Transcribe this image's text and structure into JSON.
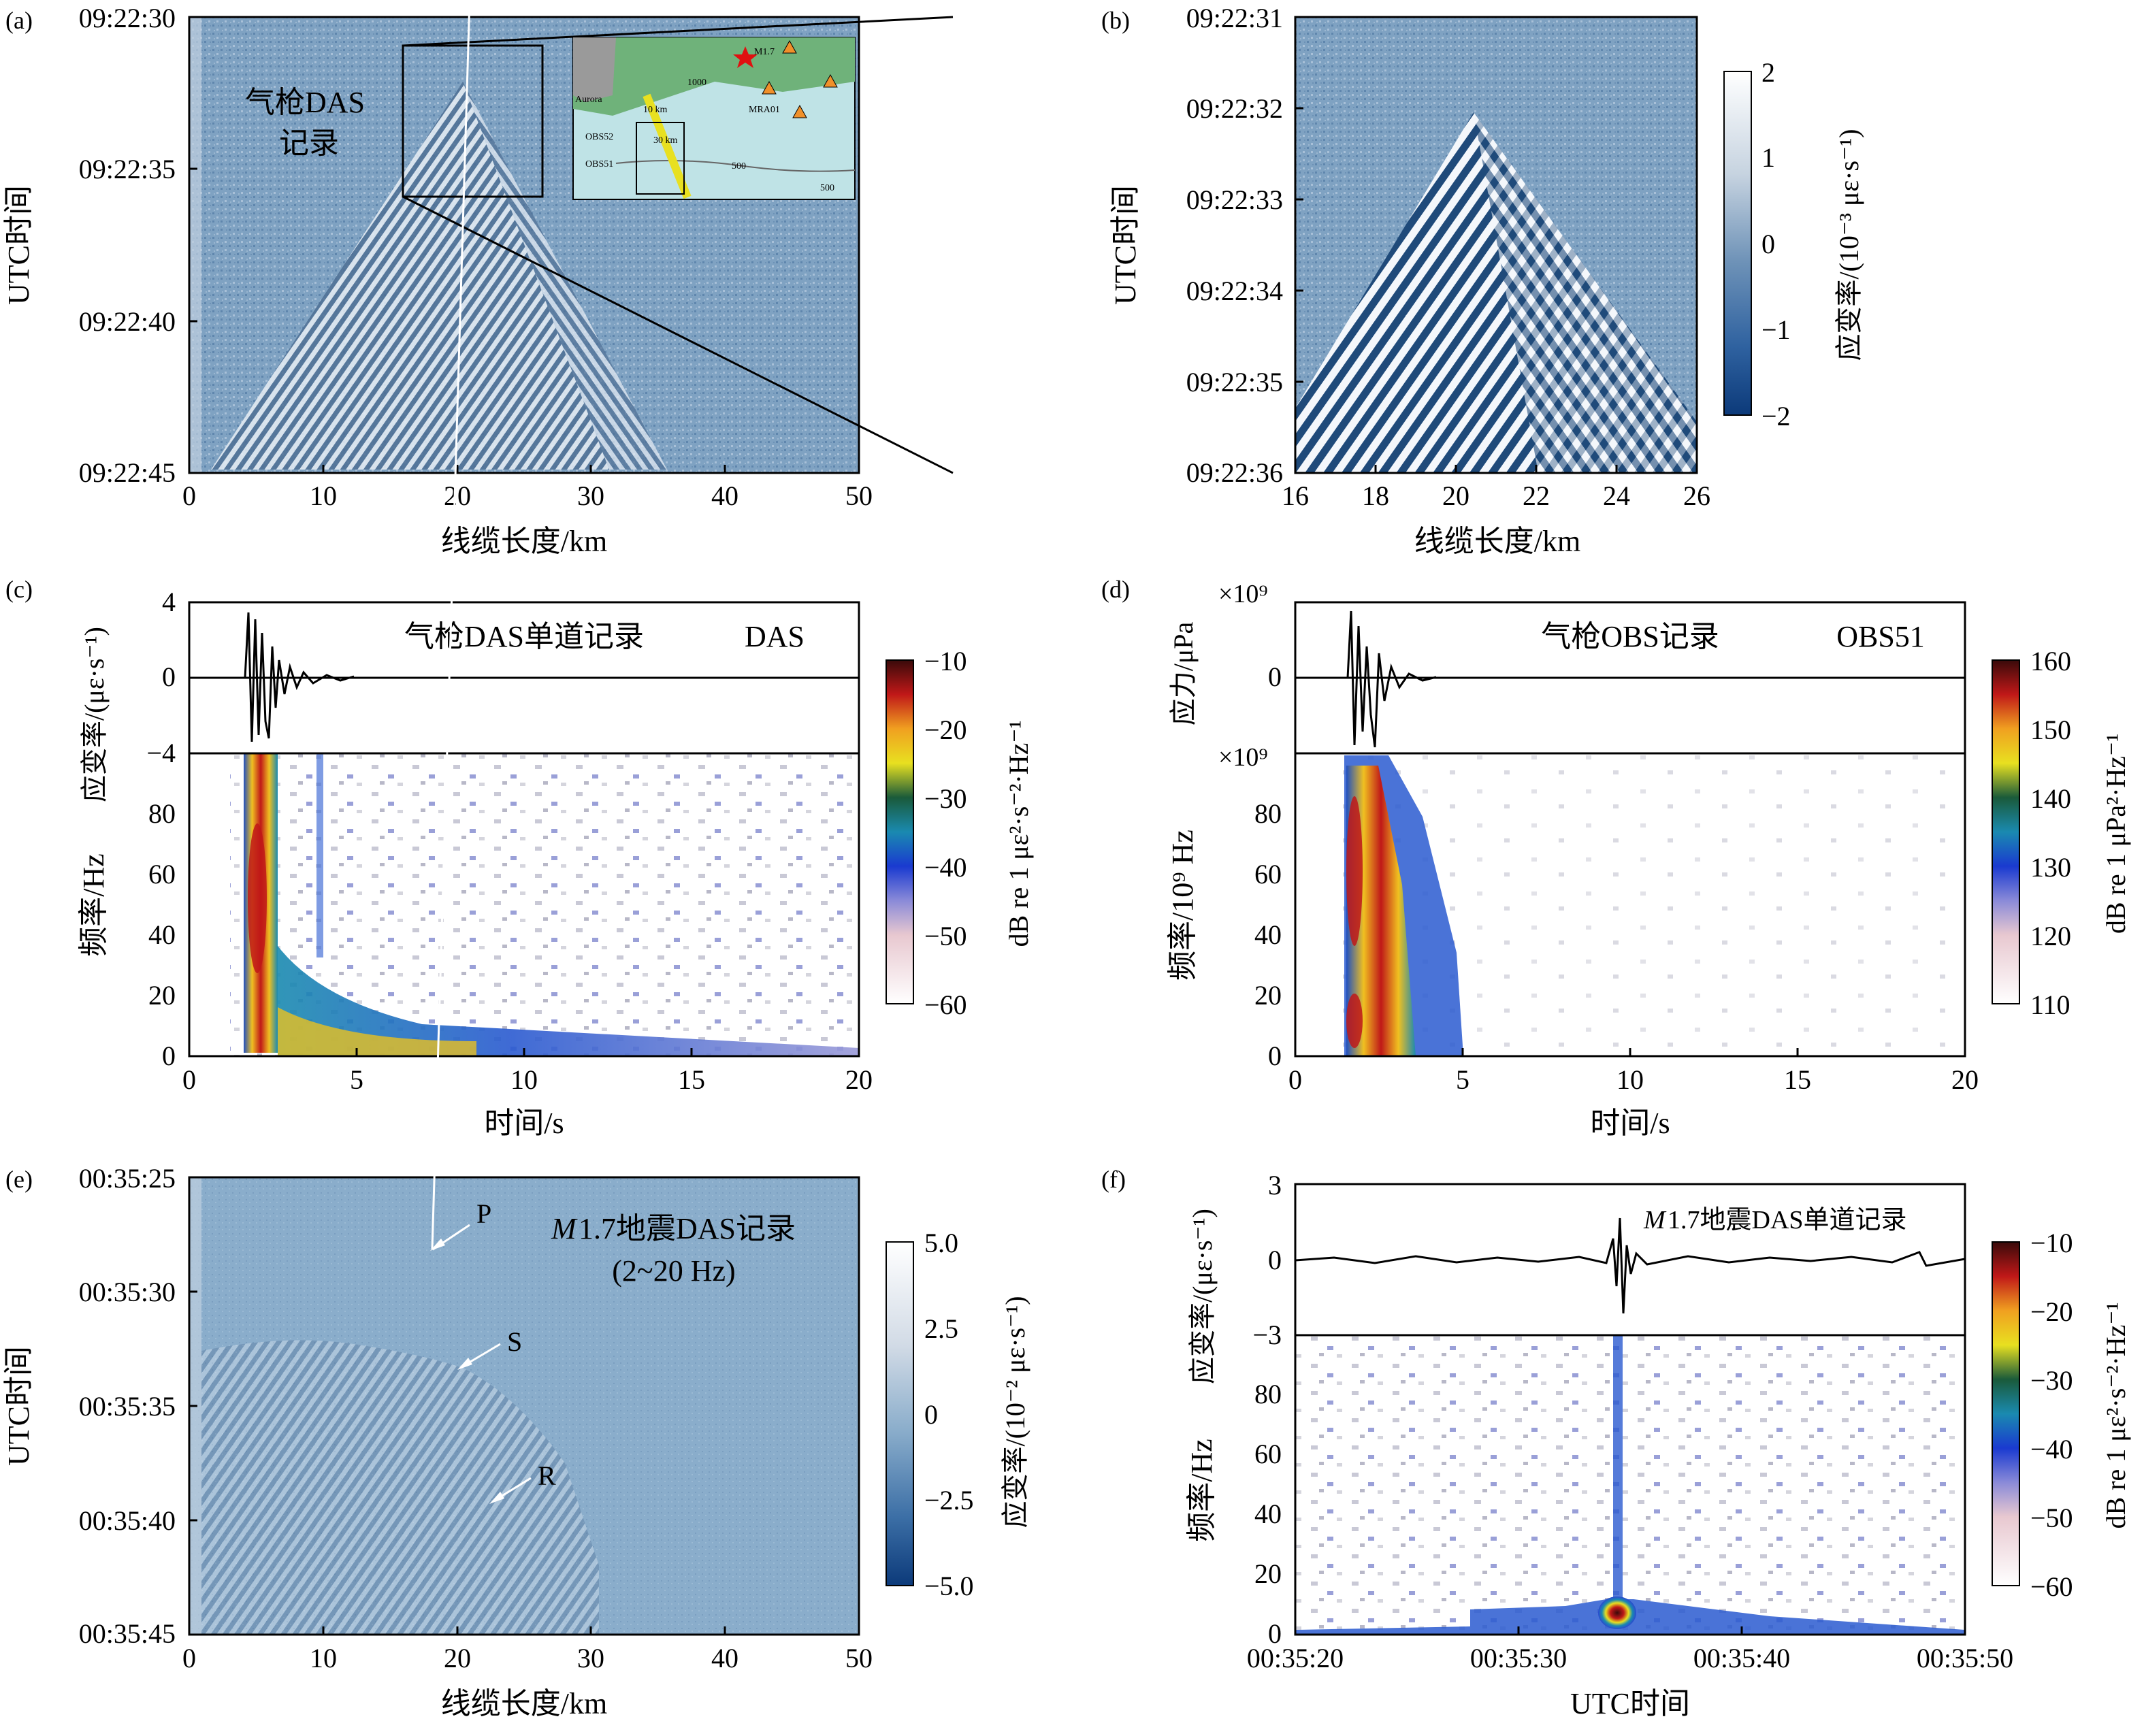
{
  "chart_data": [
    {
      "id": "a",
      "type": "heatmap",
      "panel_label": "(a)",
      "xlabel": "线缆长度/km",
      "ylabel": "UTC时间",
      "x_ticks": [
        "0",
        "10",
        "20",
        "30",
        "40",
        "50"
      ],
      "y_ticks": [
        "09:22:30",
        "09:22:35",
        "09:22:40",
        "09:22:45"
      ],
      "xlim": [
        0,
        50
      ],
      "annotation": [
        "气枪DAS",
        "记录"
      ],
      "zoom_box_km": [
        16,
        26
      ],
      "inset_map_labels": [
        "M1.7",
        "Aurora",
        "10 km",
        "1000",
        "MRA01",
        "OBS52",
        "30 km",
        "OBS51",
        "500",
        "500"
      ]
    },
    {
      "id": "b",
      "type": "heatmap",
      "panel_label": "(b)",
      "xlabel": "线缆长度/km",
      "ylabel": "UTC时间",
      "x_ticks": [
        "16",
        "18",
        "20",
        "22",
        "24",
        "26"
      ],
      "y_ticks": [
        "09:22:31",
        "09:22:32",
        "09:22:33",
        "09:22:34",
        "09:22:35",
        "09:22:36"
      ],
      "xlim": [
        16,
        26
      ],
      "colorbar": {
        "label": "应变率/(10⁻³ με·s⁻¹)",
        "ticks": [
          "2",
          "1",
          "0",
          "−1",
          "−2"
        ],
        "range": [
          -2,
          2
        ]
      }
    },
    {
      "id": "c",
      "type": "line",
      "panel_label": "(c)",
      "title": "气枪DAS单道记录",
      "legend": "DAS",
      "ylabel": "应变率/(με·s⁻¹)",
      "y_ticks": [
        "4",
        "0",
        "−4"
      ],
      "ylim": [
        -4,
        4
      ],
      "spectrogram": {
        "ylabel": "频率/Hz",
        "xlabel": "时间/s",
        "x_ticks": [
          "0",
          "5",
          "10",
          "15",
          "20"
        ],
        "y_ticks": [
          "0",
          "20",
          "40",
          "60",
          "80"
        ],
        "xlim": [
          0,
          20
        ],
        "ylim": [
          0,
          100
        ],
        "colorbar": {
          "label": "dB re 1 με²·s⁻²·Hz⁻¹",
          "ticks": [
            "−10",
            "−20",
            "−30",
            "−40",
            "−50",
            "−60"
          ],
          "range": [
            -60,
            -10
          ]
        }
      }
    },
    {
      "id": "d",
      "type": "line",
      "panel_label": "(d)",
      "title": "气枪OBS记录",
      "legend": "OBS51",
      "ylabel": "应力/μPa",
      "multiplier": "×10⁹",
      "y_ticks": [
        "0"
      ],
      "spectrogram": {
        "ylabel": "频率/10⁹ Hz",
        "multiplier": "×10⁹",
        "xlabel": "时间/s",
        "x_ticks": [
          "0",
          "5",
          "10",
          "15",
          "20"
        ],
        "y_ticks": [
          "0",
          "20",
          "40",
          "60",
          "80"
        ],
        "xlim": [
          0,
          20
        ],
        "ylim": [
          0,
          100
        ],
        "colorbar": {
          "label": "dB re 1 μPa²·Hz⁻¹",
          "ticks": [
            "160",
            "150",
            "140",
            "130",
            "120",
            "110"
          ],
          "range": [
            110,
            160
          ]
        }
      }
    },
    {
      "id": "e",
      "type": "heatmap",
      "panel_label": "(e)",
      "title_parts": [
        "M",
        "1.7地震DAS记录"
      ],
      "subtitle": "(2~20 Hz)",
      "xlabel": "线缆长度/km",
      "ylabel": "UTC时间",
      "x_ticks": [
        "0",
        "10",
        "20",
        "30",
        "40",
        "50"
      ],
      "y_ticks": [
        "00:35:25",
        "00:35:30",
        "00:35:35",
        "00:35:40",
        "00:35:45"
      ],
      "xlim": [
        0,
        50
      ],
      "phase_labels": [
        "P",
        "S",
        "R"
      ],
      "colorbar": {
        "label": "应变率/(10⁻² με·s⁻¹)",
        "ticks": [
          "5.0",
          "2.5",
          "0",
          "−2.5",
          "−5.0"
        ],
        "range": [
          -5,
          5
        ]
      }
    },
    {
      "id": "f",
      "type": "line",
      "panel_label": "(f)",
      "title_parts": [
        "M",
        "1.7地震DAS单道记录"
      ],
      "ylabel": "应变率/(με·s⁻¹)",
      "y_ticks": [
        "3",
        "0",
        "−3"
      ],
      "ylim": [
        -3,
        3
      ],
      "spectrogram": {
        "ylabel": "频率/Hz",
        "xlabel": "UTC时间",
        "x_ticks": [
          "00:35:20",
          "00:35:30",
          "00:35:40",
          "00:35:50"
        ],
        "y_ticks": [
          "0",
          "20",
          "40",
          "60",
          "80"
        ],
        "ylim": [
          0,
          100
        ],
        "colorbar": {
          "label": "dB re 1 με²·s⁻²·Hz⁻¹",
          "ticks": [
            "−10",
            "−20",
            "−30",
            "−40",
            "−50",
            "−60"
          ],
          "range": [
            -60,
            -10
          ]
        }
      }
    }
  ]
}
